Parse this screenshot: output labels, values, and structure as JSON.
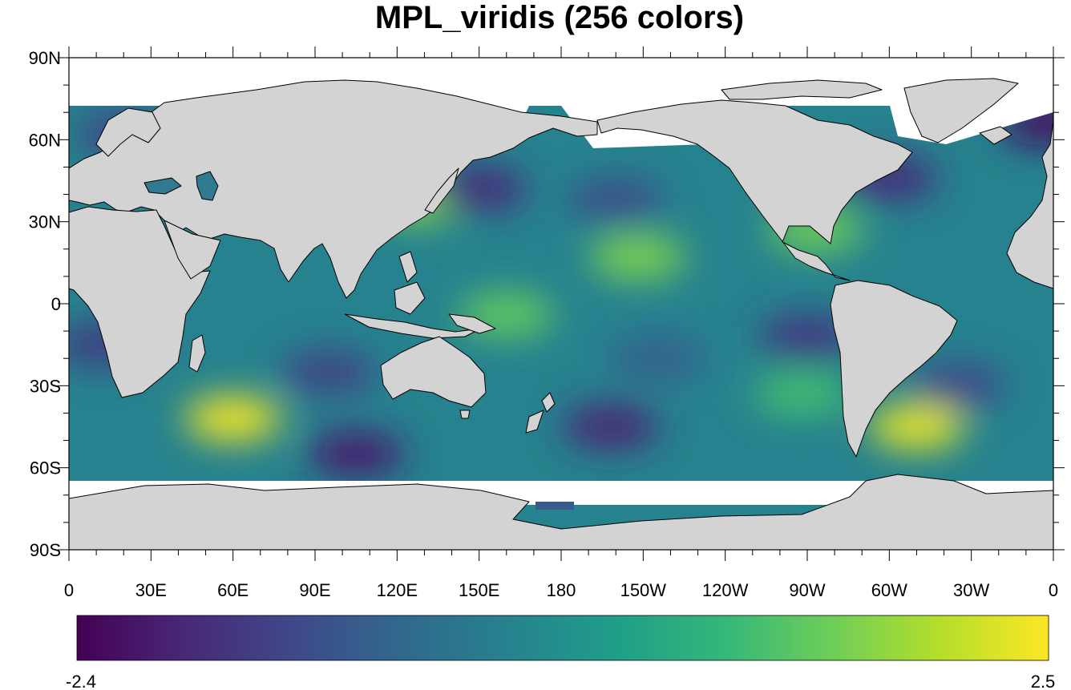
{
  "title": "MPL_viridis (256 colors)",
  "map": {
    "projection": "cylindrical-equidistant",
    "center_longitude": 180,
    "lat_range": [
      -90,
      90
    ],
    "lon_range": [
      0,
      360
    ],
    "land_color": "#d3d3d3",
    "missing_color": "#ffffff",
    "lat_ticks": [
      {
        "value": 90,
        "label": "90N"
      },
      {
        "value": 60,
        "label": "60N"
      },
      {
        "value": 30,
        "label": "30N"
      },
      {
        "value": 0,
        "label": "0"
      },
      {
        "value": -30,
        "label": "30S"
      },
      {
        "value": -60,
        "label": "60S"
      },
      {
        "value": -90,
        "label": "90S"
      }
    ],
    "lon_ticks": [
      {
        "value": 0,
        "label": "0"
      },
      {
        "value": 30,
        "label": "30E"
      },
      {
        "value": 60,
        "label": "60E"
      },
      {
        "value": 90,
        "label": "90E"
      },
      {
        "value": 120,
        "label": "120E"
      },
      {
        "value": 150,
        "label": "150E"
      },
      {
        "value": 180,
        "label": "180"
      },
      {
        "value": 210,
        "label": "150W"
      },
      {
        "value": 240,
        "label": "120W"
      },
      {
        "value": 270,
        "label": "90W"
      },
      {
        "value": 300,
        "label": "60W"
      },
      {
        "value": 330,
        "label": "30W"
      },
      {
        "value": 360,
        "label": "0"
      }
    ]
  },
  "colorbar": {
    "colormap": "MPL_viridis",
    "n_colors": 256,
    "min": -2.4,
    "max": 2.5,
    "min_label": "-2.4",
    "max_label": "2.5",
    "colors": [
      "#440154",
      "#482878",
      "#3e4989",
      "#31688e",
      "#26828e",
      "#1f9e89",
      "#35b779",
      "#6ece58",
      "#b5de2b",
      "#fde725"
    ]
  },
  "chart_data": {
    "type": "heatmap",
    "title": "MPL_viridis (256 colors)",
    "xlabel": "",
    "ylabel": "",
    "xlim": [
      0,
      360
    ],
    "ylim": [
      -90,
      90
    ],
    "value_range": [
      -2.4,
      2.5
    ],
    "anomalies": [
      {
        "lon": 60,
        "lat": -42,
        "value": 2.4
      },
      {
        "lon": 310,
        "lat": -45,
        "value": 2.3
      },
      {
        "lon": 208,
        "lat": 17,
        "value": 1.5
      },
      {
        "lon": 160,
        "lat": -4,
        "value": 1.3
      },
      {
        "lon": 128,
        "lat": 38,
        "value": 1.6
      },
      {
        "lon": 273,
        "lat": 27,
        "value": 1.4
      },
      {
        "lon": 268,
        "lat": -33,
        "value": 1.0
      },
      {
        "lon": 105,
        "lat": -55,
        "value": -2.0
      },
      {
        "lon": 150,
        "lat": 42,
        "value": -1.8
      },
      {
        "lon": 198,
        "lat": -45,
        "value": -1.9
      },
      {
        "lon": 270,
        "lat": -12,
        "value": -1.6
      },
      {
        "lon": 300,
        "lat": 46,
        "value": -1.8
      },
      {
        "lon": 358,
        "lat": 66,
        "value": -2.2
      },
      {
        "lon": 12,
        "lat": -15,
        "value": -1.5
      },
      {
        "lon": 95,
        "lat": -25,
        "value": -1.4
      },
      {
        "lon": 200,
        "lat": 38,
        "value": -1.2
      },
      {
        "lon": 325,
        "lat": -30,
        "value": -1.3
      },
      {
        "lon": 215,
        "lat": -20,
        "value": -0.9
      },
      {
        "lon": 20,
        "lat": 62,
        "value": -1.4
      }
    ]
  }
}
